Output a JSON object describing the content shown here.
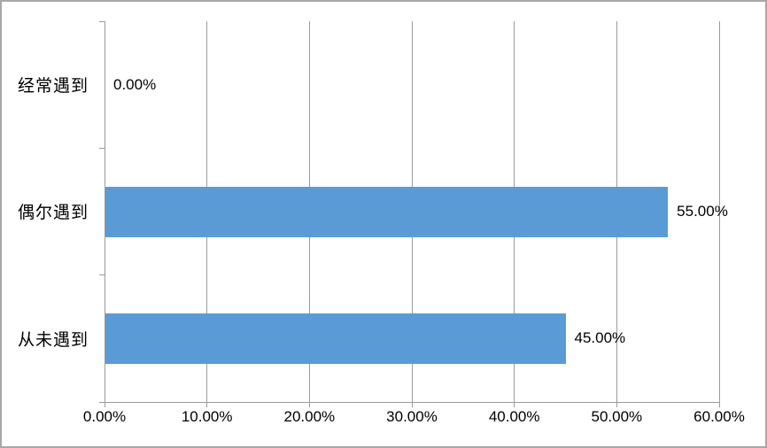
{
  "chart_data": {
    "type": "bar",
    "orientation": "horizontal",
    "title": "",
    "xlabel": "",
    "ylabel": "",
    "legend": false,
    "grid": true,
    "categories_top_to_bottom": [
      "经常遇到",
      "偶尔遇到",
      "从未遇到"
    ],
    "series": [
      {
        "name": "",
        "values_percent": [
          0,
          55,
          45
        ],
        "data_labels": [
          "0.00%",
          "55.00%",
          "45.00%"
        ]
      }
    ],
    "x_axis": {
      "min": 0,
      "max": 60,
      "tick_step": 10,
      "tick_values": [
        0,
        10,
        20,
        30,
        40,
        50,
        60
      ],
      "tick_labels": [
        "0.00%",
        "10.00%",
        "20.00%",
        "30.00%",
        "40.00%",
        "50.00%",
        "60.00%"
      ]
    },
    "colors": {
      "bar_fill": "#5B9BD5",
      "gridline": "#9B9B9B",
      "axis_line": "#9B9B9B",
      "text": "#000000",
      "chart_border": "#A8A8A8",
      "background": "#FFFFFF"
    }
  }
}
